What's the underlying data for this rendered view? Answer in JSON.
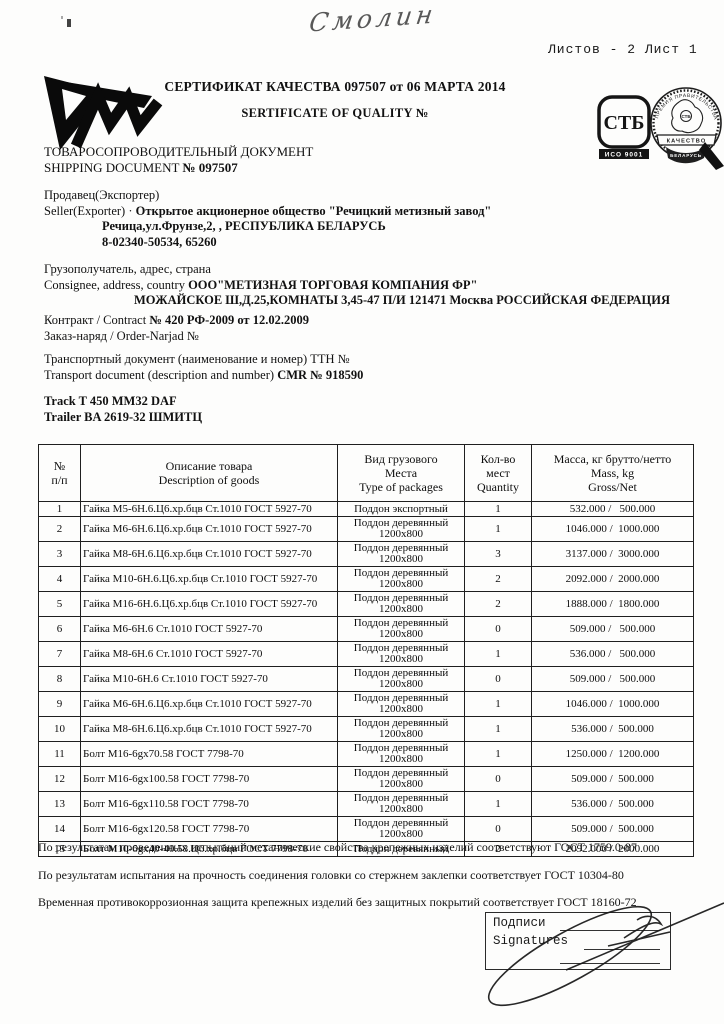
{
  "page": {
    "handwriting": "Смолин",
    "sheet_label": "Листов - 2 Лист 1"
  },
  "header": {
    "title_ru": "СЕРТИФИКАТ КАЧЕСТВА 097507 от 06 МАРТА 2014",
    "title_en": "SERTIFICATE OF QUALITY №",
    "doc_ru": "ТОВАРОСОПРОВОДИТЕЛЬНЫЙ ДОКУМЕНТ",
    "doc_en_label": "SHIPPING DOCUMENT",
    "doc_number": "№ 097507",
    "stamp_stb": {
      "letters": "СТБ",
      "bar": "ИСО 9001"
    },
    "stamp_award": {
      "arc_text": "ПРЕМИЯ ПРАВИТЕЛЬСТВА",
      "map_text": "СТБ",
      "ribbon": "КАЧЕСТВО",
      "tail": "БЕЛАРУСЬ"
    }
  },
  "seller": {
    "label_ru": "Продавец(Экспортер)",
    "label_en": "Seller(Exporter) ·",
    "name": "Открытое акционерное общество \"Речицкий метизный завод\"",
    "address": "Речица,ул.Фрунзе,2,  , РЕСПУБЛИКА БЕЛАРУСЬ",
    "phone": "8-02340-50534, 65260"
  },
  "consignee": {
    "label_ru": "Грузополучатель, адрес, страна",
    "label_en": "Consignee, address, country",
    "name": "ООО\"МЕТИЗНАЯ ТОРГОВАЯ КОМПАНИЯ ФР\"",
    "address": "МОЖАЙСКОЕ Ш,Д.25,КОМНАТЫ 3,45-47 П/И 121471 Москва РОССИЙСКАЯ ФЕДЕРАЦИЯ"
  },
  "contract": {
    "label": "Контракт / Contract",
    "value": "№ 420 РФ-2009 от 12.02.2009",
    "order_label": "Заказ-наряд / Order-Narjad №"
  },
  "transport": {
    "label_ru": "Транспортный документ (наименование и номер) ТТН №",
    "label_en": "Transport document (description and number)",
    "value": "CMR № 918590"
  },
  "vehicle": {
    "track": "Track T 450 MM32 DAF",
    "trailer": "Trailer BA 2619-32 ШМИТЦ"
  },
  "table": {
    "headers": {
      "num": "№\nп/п",
      "desc": "Описание товара\nDescription of goods",
      "pkg": "Вид грузового\nМеста\nType of packages",
      "qty": "Кол-во\nмест\nQuantity",
      "mass": "Масса, кг брутто/нетто\nMass, kg\nGross/Net"
    },
    "rows": [
      {
        "num": "1",
        "desc": "Гайка М5-6Н.6.Ц6.хр.бцв Ст.1010 ГОСТ 5927-70",
        "pkg": "Поддон экспортный",
        "qty": "1",
        "mass": "532.000 /   500.000"
      },
      {
        "num": "2",
        "desc": "Гайка М6-6Н.6.Ц6.хр.бцв Ст.1010 ГОСТ 5927-70",
        "pkg": "Поддон деревянный\n1200х800",
        "qty": "1",
        "mass": "1046.000 /  1000.000"
      },
      {
        "num": "3",
        "desc": "Гайка М8-6Н.6.Ц6.хр.бцв Ст.1010 ГОСТ 5927-70",
        "pkg": "Поддон деревянный\n1200х800",
        "qty": "3",
        "mass": "3137.000 /  3000.000"
      },
      {
        "num": "4",
        "desc": "Гайка М10-6Н.6.Ц6.хр.бцв Ст.1010 ГОСТ 5927-70",
        "pkg": "Поддон деревянный\n1200х800",
        "qty": "2",
        "mass": "2092.000 /  2000.000"
      },
      {
        "num": "5",
        "desc": "Гайка М16-6Н.6.Ц6.хр.бцв Ст.1010 ГОСТ 5927-70",
        "pkg": "Поддон деревянный\n1200х800",
        "qty": "2",
        "mass": "1888.000 /  1800.000"
      },
      {
        "num": "6",
        "desc": "Гайка М6-6Н.6 Ст.1010 ГОСТ 5927-70",
        "pkg": "Поддон деревянный\n1200х800",
        "qty": "0",
        "mass": "509.000 /   500.000"
      },
      {
        "num": "7",
        "desc": "Гайка М8-6Н.6 Ст.1010 ГОСТ 5927-70",
        "pkg": "Поддон деревянный\n1200х800",
        "qty": "1",
        "mass": "536.000 /   500.000"
      },
      {
        "num": "8",
        "desc": "Гайка М10-6Н.6 Ст.1010 ГОСТ 5927-70",
        "pkg": "Поддон деревянный\n1200х800",
        "qty": "0",
        "mass": "509.000 /   500.000"
      },
      {
        "num": "9",
        "desc": "Гайка М6-6Н.6.Ц6.хр.бцв Ст.1010 ГОСТ 5927-70",
        "pkg": "Поддон деревянный\n1200х800",
        "qty": "1",
        "mass": "1046.000 /  1000.000"
      },
      {
        "num": "10",
        "desc": "Гайка М8-6Н.6.Ц6.хр.бцв Ст.1010 ГОСТ 5927-70",
        "pkg": "Поддон деревянный\n1200х800",
        "qty": "1",
        "mass": "536.000 /  500.000"
      },
      {
        "num": "11",
        "desc": "Болт М16-6gx70.58 ГОСТ 7798-70",
        "pkg": "Поддон деревянный\n1200х800",
        "qty": "1",
        "mass": "1250.000 /  1200.000"
      },
      {
        "num": "12",
        "desc": "Болт М16-6gx100.58 ГОСТ 7798-70",
        "pkg": "Поддон деревянный\n1200х800",
        "qty": "0",
        "mass": "509.000 /  500.000"
      },
      {
        "num": "13",
        "desc": "Болт М16-6gx110.58 ГОСТ 7798-70",
        "pkg": "Поддон деревянный\n1200х800",
        "qty": "1",
        "mass": "536.000 /  500.000"
      },
      {
        "num": "14",
        "desc": "Болт М16-6gx120.58 ГОСТ 7798-70",
        "pkg": "Поддон деревянный\n1200х800",
        "qty": "0",
        "mass": "509.000 /  500.000"
      },
      {
        "num": "15",
        "desc": "Болт М10-6gx40-40.58.Ц6.хр.бцв ГОСТ 7798-70",
        "pkg": "Поддон деревянный",
        "qty": "2",
        "mass": "2092.000 /  2000.000"
      }
    ]
  },
  "notes": {
    "n1": "По результатам проведенных испытаний механические свойства крепежных изделий соответствуют ГОСТ 1759.0-87",
    "n2": "По результатам испытания на прочность соединения головки со стержнем заклепки соответствует ГОСТ 10304-80",
    "n3": "Временная противокоррозионная защита крепежных изделий без защитных покрытий соответствует ГОСТ 18160-72"
  },
  "signature": {
    "label_ru": "Подписи",
    "label_en": "Signatures"
  }
}
